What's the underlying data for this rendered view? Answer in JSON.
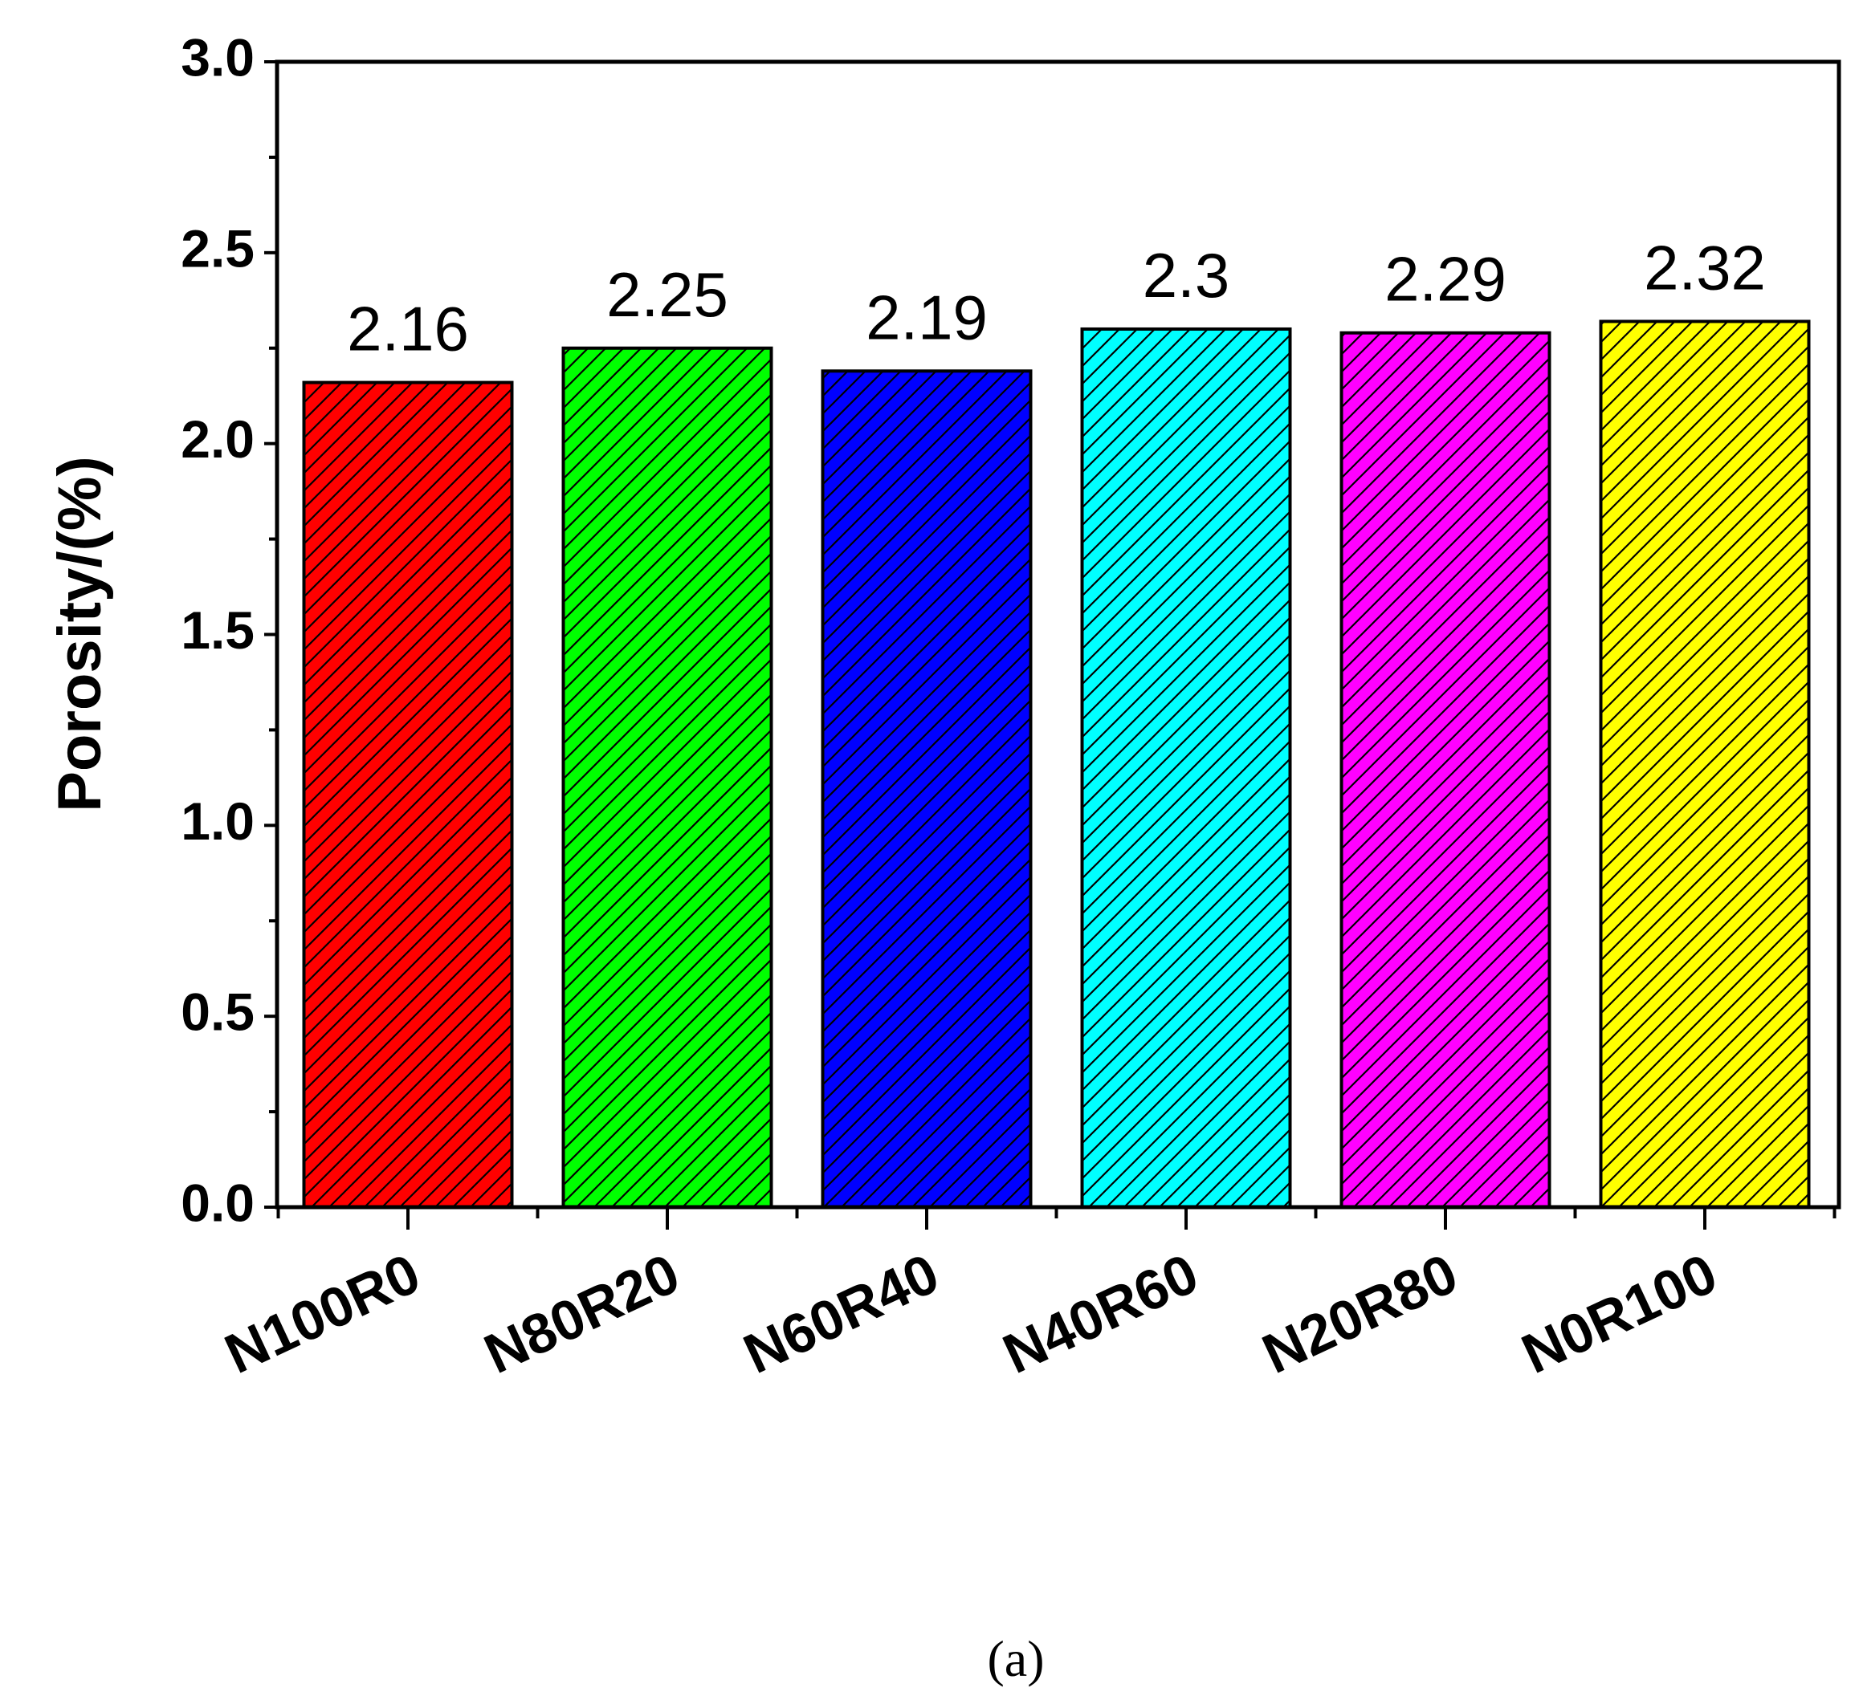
{
  "chart_data": {
    "type": "bar",
    "categories": [
      "N100R0",
      "N80R20",
      "N60R40",
      "N40R60",
      "N20R80",
      "N0R100"
    ],
    "values": [
      2.16,
      2.25,
      2.19,
      2.3,
      2.29,
      2.32
    ],
    "data_labels": [
      "2.16",
      "2.25",
      "2.19",
      "2.3",
      "2.29",
      "2.32"
    ],
    "colors": [
      "#ff0000",
      "#00ff00",
      "#0000ff",
      "#00ffff",
      "#ff00ff",
      "#ffff00"
    ],
    "fill_pattern": "diagonal-hatch",
    "ylabel": "Porosity/(%)",
    "ylim": [
      0,
      3.0
    ],
    "yticks": [
      "0.0",
      "0.5",
      "1.0",
      "1.5",
      "2.0",
      "2.5",
      "3.0"
    ],
    "grid": false,
    "legend": "none"
  },
  "caption": "(a)"
}
